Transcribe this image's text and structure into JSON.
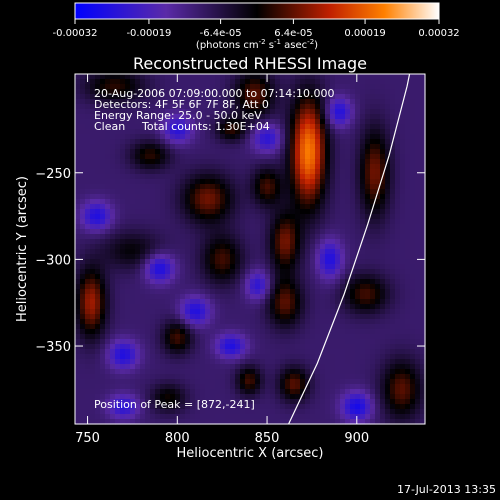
{
  "chart_data": {
    "type": "heatmap",
    "title": "Reconstructed RHESSI Image",
    "xlabel": "Heliocentric X (arcsec)",
    "ylabel": "Heliocentric Y (arcsec)",
    "xlim": [
      743,
      938
    ],
    "ylim": [
      -395,
      -193
    ],
    "x_ticks": [
      750,
      800,
      850,
      900
    ],
    "y_ticks": [
      -250,
      -300,
      -350
    ],
    "x_tick_labels": [
      "750",
      "800",
      "850",
      "900"
    ],
    "y_tick_labels": [
      "−250",
      "−300",
      "−350"
    ],
    "colorbar": {
      "range": [
        -0.00032,
        0.00032
      ],
      "ticks": [
        -0.00032,
        -0.00019,
        -6.4e-05,
        6.4e-05,
        0.00019,
        0.00032
      ],
      "tick_labels": [
        "-0.00032",
        "-0.00019",
        "-6.4e-05",
        "6.4e-05",
        "0.00019",
        "0.00032"
      ],
      "units_prefix": "(photons cm",
      "units_exp1": "-2",
      "units_mid": " s",
      "units_exp2": "-1",
      "units_mid2": " asec",
      "units_exp3": "-2",
      "units_suffix": ")"
    },
    "annotations": {
      "time_range": "20-Aug-2006 07:09:00.000 to 07:14:10.000",
      "detectors": "Detectors: 4F 5F 6F 7F 8F, Att 0",
      "energy": "Energy Range: 25.0 - 50.0 keV",
      "clean": "Clean",
      "counts": "Total counts: 1.30E+04",
      "peak": "Position of Peak = [872,-241]"
    },
    "peak": {
      "x": 872,
      "y": -241
    },
    "limb_curve": [
      [
        862,
        -395
      ],
      [
        878,
        -360
      ],
      [
        893,
        -320
      ],
      [
        906,
        -280
      ],
      [
        918,
        -240
      ],
      [
        928,
        -200
      ],
      [
        931,
        -185
      ]
    ],
    "blobs": [
      {
        "x": 873,
        "y": -238,
        "sx": 7,
        "sy": 22,
        "amp": 1.0
      },
      {
        "x": 860,
        "y": -290,
        "sx": 6,
        "sy": 12,
        "amp": 0.55
      },
      {
        "x": 817,
        "y": -265,
        "sx": 10,
        "sy": 10,
        "amp": 0.55
      },
      {
        "x": 825,
        "y": -300,
        "sx": 8,
        "sy": 10,
        "amp": 0.45
      },
      {
        "x": 752,
        "y": -325,
        "sx": 6,
        "sy": 14,
        "amp": 0.65
      },
      {
        "x": 765,
        "y": -200,
        "sx": 12,
        "sy": 7,
        "amp": 0.4
      },
      {
        "x": 843,
        "y": -205,
        "sx": 8,
        "sy": 10,
        "amp": 0.5
      },
      {
        "x": 860,
        "y": -325,
        "sx": 7,
        "sy": 10,
        "amp": 0.5
      },
      {
        "x": 800,
        "y": -345,
        "sx": 6,
        "sy": 7,
        "amp": 0.45
      },
      {
        "x": 865,
        "y": -372,
        "sx": 6,
        "sy": 7,
        "amp": 0.5
      },
      {
        "x": 775,
        "y": -295,
        "sx": 12,
        "sy": 8,
        "amp": 0.3
      },
      {
        "x": 850,
        "y": -258,
        "sx": 6,
        "sy": 8,
        "amp": 0.45
      },
      {
        "x": 910,
        "y": -250,
        "sx": 6,
        "sy": 18,
        "amp": 0.55
      },
      {
        "x": 905,
        "y": -320,
        "sx": 9,
        "sy": 8,
        "amp": 0.45
      },
      {
        "x": 925,
        "y": -375,
        "sx": 8,
        "sy": 12,
        "amp": 0.5
      },
      {
        "x": 785,
        "y": -240,
        "sx": 8,
        "sy": 6,
        "amp": 0.4
      },
      {
        "x": 840,
        "y": -370,
        "sx": 5,
        "sy": 6,
        "amp": 0.45
      },
      {
        "x": 795,
        "y": -380,
        "sx": 7,
        "sy": 6,
        "amp": 0.35
      },
      {
        "x": 830,
        "y": -225,
        "sx": 6,
        "sy": 5,
        "amp": 0.4
      },
      {
        "x": 755,
        "y": -275,
        "sx": 6,
        "sy": 6,
        "amp": -0.5
      },
      {
        "x": 790,
        "y": -305,
        "sx": 6,
        "sy": 6,
        "amp": -0.55
      },
      {
        "x": 810,
        "y": -330,
        "sx": 6,
        "sy": 6,
        "amp": -0.5
      },
      {
        "x": 830,
        "y": -350,
        "sx": 6,
        "sy": 5,
        "amp": -0.5
      },
      {
        "x": 770,
        "y": -355,
        "sx": 6,
        "sy": 6,
        "amp": -0.5
      },
      {
        "x": 850,
        "y": -230,
        "sx": 6,
        "sy": 6,
        "amp": -0.45
      },
      {
        "x": 885,
        "y": -300,
        "sx": 5,
        "sy": 8,
        "amp": -0.5
      },
      {
        "x": 900,
        "y": -385,
        "sx": 6,
        "sy": 6,
        "amp": -0.55
      },
      {
        "x": 800,
        "y": -225,
        "sx": 6,
        "sy": 6,
        "amp": -0.45
      },
      {
        "x": 890,
        "y": -215,
        "sx": 5,
        "sy": 6,
        "amp": -0.5
      },
      {
        "x": 845,
        "y": -315,
        "sx": 5,
        "sy": 6,
        "amp": -0.45
      },
      {
        "x": 770,
        "y": -385,
        "sx": 6,
        "sy": 5,
        "amp": -0.45
      }
    ]
  },
  "footer": {
    "timestamp": "17-Jul-2013 13:35"
  },
  "colors": {
    "background": "#000000",
    "foreground": "#ffffff"
  }
}
